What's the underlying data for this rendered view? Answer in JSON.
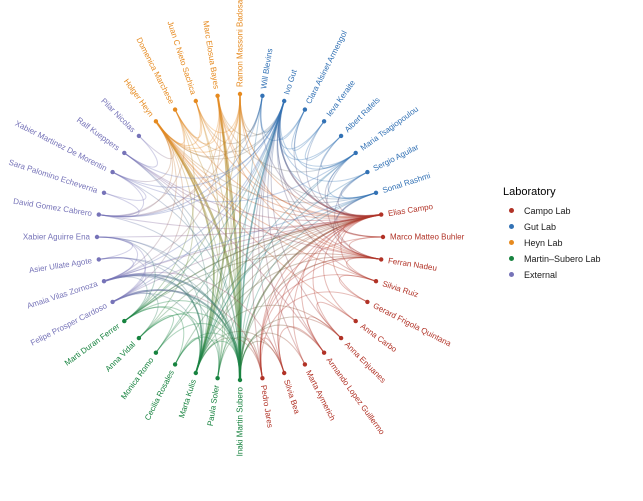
{
  "chart_data": {
    "type": "network",
    "layout": "circular",
    "title": "",
    "legend": {
      "title": "Laboratory",
      "position": "right",
      "items": [
        {
          "key": "campo",
          "label": "Campo Lab",
          "color": "#b13226"
        },
        {
          "key": "gut",
          "label": "Gut Lab",
          "color": "#3372b5"
        },
        {
          "key": "heyn",
          "label": "Heyn Lab",
          "color": "#e68a1f"
        },
        {
          "key": "subero",
          "label": "Martin–Subero Lab",
          "color": "#17833f"
        },
        {
          "key": "external",
          "label": "External",
          "color": "#7673b8"
        }
      ]
    },
    "nodes": [
      {
        "name": "Ramon Massoni Badosa",
        "lab": "heyn"
      },
      {
        "name": "Will Blevins",
        "lab": "gut"
      },
      {
        "name": "Ivo Gut",
        "lab": "gut"
      },
      {
        "name": "Clara Alsinet Armengol",
        "lab": "gut"
      },
      {
        "name": "Ieva Keraite",
        "lab": "gut"
      },
      {
        "name": "Albert Rafels",
        "lab": "gut"
      },
      {
        "name": "Maria Tsagiopoulou",
        "lab": "gut"
      },
      {
        "name": "Sergio Aguilar",
        "lab": "gut"
      },
      {
        "name": "Sonal Rashmi",
        "lab": "gut"
      },
      {
        "name": "Elias Campo",
        "lab": "campo"
      },
      {
        "name": "Marco Matteo Buhler",
        "lab": "campo"
      },
      {
        "name": "Ferran Nadeu",
        "lab": "campo"
      },
      {
        "name": "Silvia Ruiz",
        "lab": "campo"
      },
      {
        "name": "Gerard Frigola Quintana",
        "lab": "campo"
      },
      {
        "name": "Anna Carbo",
        "lab": "campo"
      },
      {
        "name": "Anna Enjuanes",
        "lab": "campo"
      },
      {
        "name": "Armando Lopez Guillermo",
        "lab": "campo"
      },
      {
        "name": "Marta Aymerich",
        "lab": "campo"
      },
      {
        "name": "Silvia Bea",
        "lab": "campo"
      },
      {
        "name": "Pedro Jares",
        "lab": "campo"
      },
      {
        "name": "Inaki Martin Subero",
        "lab": "subero"
      },
      {
        "name": "Paula Soler",
        "lab": "subero"
      },
      {
        "name": "Marta Kulis",
        "lab": "subero"
      },
      {
        "name": "Cecilia Rosales",
        "lab": "subero"
      },
      {
        "name": "Monica Romo",
        "lab": "subero"
      },
      {
        "name": "Anna Vidal",
        "lab": "subero"
      },
      {
        "name": "Marti Duran Ferrer",
        "lab": "subero"
      },
      {
        "name": "Felipe Prosper Cardoso",
        "lab": "external"
      },
      {
        "name": "Amaia Vilas Zornoza",
        "lab": "external"
      },
      {
        "name": "Asier Ullate Agote",
        "lab": "external"
      },
      {
        "name": "Xabier Aguirre Ena",
        "lab": "external"
      },
      {
        "name": "David Gomez Cabrero",
        "lab": "external"
      },
      {
        "name": "Sara Palomino Echeverria",
        "lab": "external"
      },
      {
        "name": "Xabier Martinez De Morentin",
        "lab": "external"
      },
      {
        "name": "Ralf Kueppers",
        "lab": "external"
      },
      {
        "name": "Pilar Nicolas",
        "lab": "external"
      },
      {
        "name": "Holger Heyn",
        "lab": "heyn"
      },
      {
        "name": "Domenica Marchese",
        "lab": "heyn"
      },
      {
        "name": "Juan C Nieto Sachica",
        "lab": "heyn"
      },
      {
        "name": "Marc Elosua Bayes",
        "lab": "heyn"
      }
    ],
    "edges": [
      [
        36,
        37
      ],
      [
        36,
        38
      ],
      [
        36,
        39
      ],
      [
        36,
        0
      ],
      [
        37,
        39
      ],
      [
        38,
        0
      ],
      [
        37,
        38
      ],
      [
        39,
        0
      ],
      [
        36,
        2
      ],
      [
        36,
        1
      ],
      [
        39,
        2
      ],
      [
        0,
        2
      ],
      [
        0,
        1
      ],
      [
        37,
        2
      ],
      [
        38,
        1
      ],
      [
        36,
        8
      ],
      [
        39,
        6
      ],
      [
        0,
        8
      ],
      [
        36,
        20,
        2.4
      ],
      [
        36,
        22,
        1.8
      ],
      [
        39,
        20,
        2.4
      ],
      [
        39,
        22,
        1.8
      ],
      [
        0,
        20,
        2
      ],
      [
        0,
        22
      ],
      [
        37,
        20
      ],
      [
        38,
        20
      ],
      [
        36,
        21
      ],
      [
        39,
        21
      ],
      [
        0,
        26
      ],
      [
        36,
        25
      ],
      [
        38,
        22
      ],
      [
        37,
        26
      ],
      [
        36,
        9
      ],
      [
        36,
        11
      ],
      [
        39,
        9
      ],
      [
        0,
        9
      ],
      [
        37,
        9
      ],
      [
        36,
        12
      ],
      [
        39,
        11
      ],
      [
        36,
        14
      ],
      [
        38,
        9
      ],
      [
        0,
        11
      ],
      [
        36,
        31
      ],
      [
        36,
        27
      ],
      [
        39,
        28
      ],
      [
        36,
        28
      ],
      [
        0,
        31
      ],
      [
        36,
        33
      ],
      [
        36,
        35
      ],
      [
        39,
        31
      ],
      [
        37,
        31
      ],
      [
        2,
        1
      ],
      [
        2,
        3
      ],
      [
        2,
        4
      ],
      [
        2,
        5
      ],
      [
        2,
        6
      ],
      [
        2,
        7
      ],
      [
        2,
        8
      ],
      [
        6,
        8
      ],
      [
        3,
        4
      ],
      [
        7,
        8
      ],
      [
        5,
        6
      ],
      [
        1,
        3
      ],
      [
        3,
        6
      ],
      [
        4,
        5
      ],
      [
        2,
        9,
        1.6
      ],
      [
        2,
        11
      ],
      [
        8,
        9
      ],
      [
        2,
        10
      ],
      [
        6,
        9
      ],
      [
        2,
        12
      ],
      [
        7,
        9
      ],
      [
        2,
        19
      ],
      [
        2,
        18
      ],
      [
        8,
        11
      ],
      [
        6,
        11
      ],
      [
        2,
        15
      ],
      [
        2,
        16
      ],
      [
        5,
        9
      ],
      [
        8,
        10
      ],
      [
        7,
        11
      ],
      [
        1,
        9
      ],
      [
        3,
        9
      ],
      [
        4,
        9
      ],
      [
        2,
        17
      ],
      [
        2,
        20,
        1.6
      ],
      [
        2,
        22
      ],
      [
        8,
        20
      ],
      [
        6,
        20
      ],
      [
        2,
        24
      ],
      [
        7,
        22
      ],
      [
        2,
        26
      ],
      [
        1,
        20
      ],
      [
        6,
        22
      ],
      [
        8,
        22
      ],
      [
        2,
        31
      ],
      [
        2,
        27
      ],
      [
        2,
        33
      ],
      [
        6,
        33
      ],
      [
        2,
        34
      ],
      [
        8,
        28
      ],
      [
        1,
        31
      ],
      [
        2,
        28
      ],
      [
        9,
        10
      ],
      [
        9,
        11
      ],
      [
        9,
        12
      ],
      [
        9,
        13
      ],
      [
        9,
        14
      ],
      [
        9,
        15
      ],
      [
        9,
        16
      ],
      [
        9,
        17
      ],
      [
        9,
        18
      ],
      [
        9,
        19
      ],
      [
        11,
        18
      ],
      [
        11,
        19
      ],
      [
        10,
        11
      ],
      [
        12,
        13
      ],
      [
        15,
        16
      ],
      [
        18,
        19
      ],
      [
        14,
        15
      ],
      [
        11,
        12
      ],
      [
        13,
        19
      ],
      [
        16,
        18
      ],
      [
        10,
        19
      ],
      [
        12,
        19
      ],
      [
        9,
        20,
        1.8
      ],
      [
        9,
        22
      ],
      [
        11,
        20
      ],
      [
        11,
        22
      ],
      [
        20,
        19
      ],
      [
        20,
        18
      ],
      [
        22,
        18
      ],
      [
        9,
        21
      ],
      [
        9,
        24
      ],
      [
        9,
        26
      ],
      [
        22,
        19
      ],
      [
        20,
        17
      ],
      [
        23,
        9
      ],
      [
        26,
        9
      ],
      [
        22,
        15
      ],
      [
        20,
        15
      ],
      [
        20,
        16
      ],
      [
        26,
        11
      ],
      [
        21,
        19
      ],
      [
        25,
        9
      ],
      [
        9,
        27
      ],
      [
        9,
        28
      ],
      [
        9,
        34
      ],
      [
        11,
        34
      ],
      [
        9,
        31
      ],
      [
        19,
        27
      ],
      [
        9,
        30
      ],
      [
        16,
        34
      ],
      [
        18,
        28
      ],
      [
        20,
        21
      ],
      [
        20,
        22
      ],
      [
        20,
        23
      ],
      [
        20,
        24
      ],
      [
        20,
        25
      ],
      [
        20,
        26
      ],
      [
        22,
        23
      ],
      [
        22,
        26
      ],
      [
        21,
        22
      ],
      [
        24,
        25
      ],
      [
        22,
        25
      ],
      [
        21,
        23
      ],
      [
        23,
        26
      ],
      [
        20,
        27,
        1.8
      ],
      [
        20,
        28,
        2
      ],
      [
        22,
        28,
        1.6
      ],
      [
        20,
        29
      ],
      [
        20,
        30
      ],
      [
        26,
        27
      ],
      [
        20,
        31
      ],
      [
        22,
        30
      ],
      [
        26,
        28
      ],
      [
        25,
        27
      ],
      [
        20,
        34
      ],
      [
        22,
        34
      ],
      [
        20,
        33
      ],
      [
        22,
        27
      ],
      [
        21,
        28
      ],
      [
        22,
        29
      ],
      [
        26,
        30
      ],
      [
        27,
        28
      ],
      [
        28,
        29
      ],
      [
        29,
        30
      ],
      [
        27,
        30
      ],
      [
        31,
        32
      ],
      [
        32,
        33
      ],
      [
        34,
        35
      ],
      [
        28,
        30
      ],
      [
        31,
        33
      ],
      [
        27,
        29
      ]
    ]
  }
}
